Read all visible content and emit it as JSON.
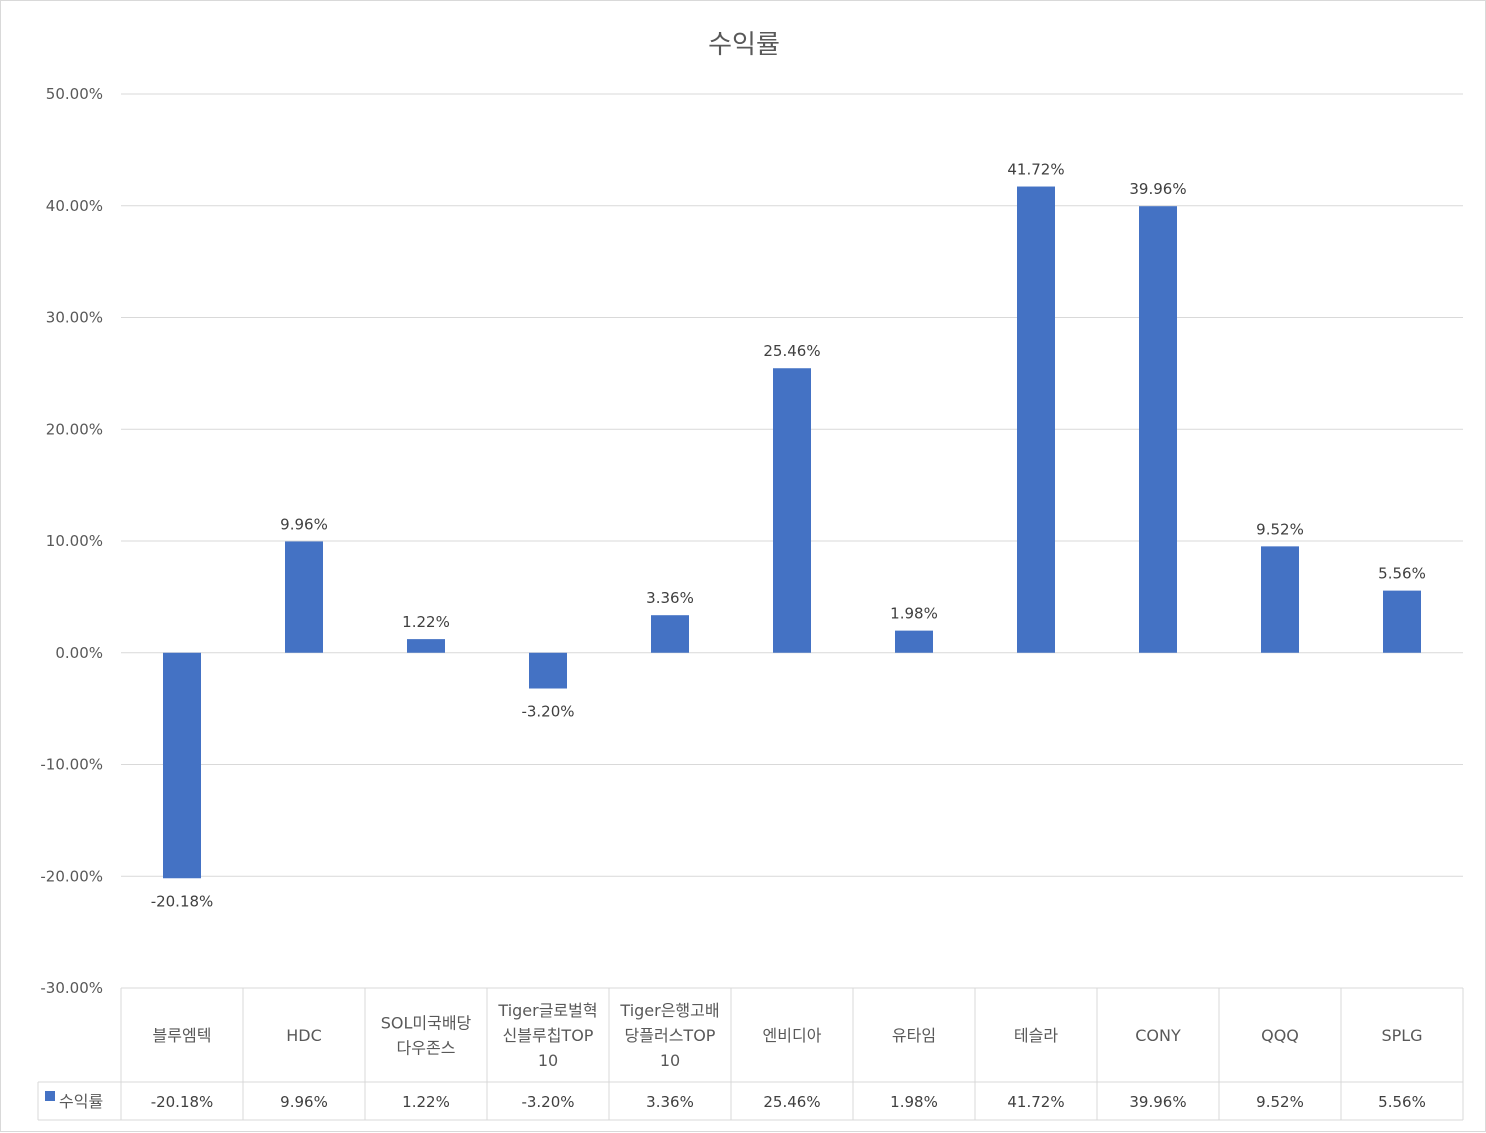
{
  "chart_data": {
    "type": "bar",
    "title": "수익률",
    "categories": [
      "블루엠텍",
      "HDC",
      "SOL미국배당다우존스",
      "Tiger글로벌혁신블루칩TOP10",
      "Tiger은행고배당플러스TOP10",
      "엔비디아",
      "유타임",
      "테슬라",
      "CONY",
      "QQQ",
      "SPLG"
    ],
    "category_lines": [
      [
        "블루엠텍"
      ],
      [
        "HDC"
      ],
      [
        "SOL미국배당",
        "다우존스"
      ],
      [
        "Tiger글로벌혁",
        "신블루칩TOP",
        "10"
      ],
      [
        "Tiger은행고배",
        "당플러스TOP",
        "10"
      ],
      [
        "엔비디아"
      ],
      [
        "유타임"
      ],
      [
        "테슬라"
      ],
      [
        "CONY"
      ],
      [
        "QQQ"
      ],
      [
        "SPLG"
      ]
    ],
    "series": [
      {
        "name": "수익률",
        "color": "#4472c4",
        "values": [
          -20.18,
          9.96,
          1.22,
          -3.2,
          3.36,
          25.46,
          1.98,
          41.72,
          39.96,
          9.52,
          5.56
        ],
        "labels": [
          "-20.18%",
          "9.96%",
          "1.22%",
          "-3.20%",
          "3.36%",
          "25.46%",
          "1.98%",
          "41.72%",
          "39.96%",
          "9.52%",
          "5.56%"
        ]
      }
    ],
    "ylim": [
      -30,
      50
    ],
    "yticks": [
      50,
      40,
      30,
      20,
      10,
      0,
      -10,
      -20,
      -30
    ],
    "ytick_labels": [
      "50.00%",
      "40.00%",
      "30.00%",
      "20.00%",
      "10.00%",
      "0.00%",
      "-10.00%",
      "-20.00%",
      "-30.00%"
    ],
    "grid": true,
    "legend": "data-table",
    "xlabel": "",
    "ylabel": ""
  }
}
